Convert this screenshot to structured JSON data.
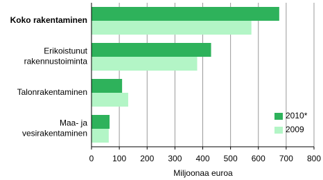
{
  "chart_data": {
    "type": "hbar",
    "categories": [
      "Koko rakentaminen",
      "Erikoistunut\nrakennustoiminta",
      "Talonrakentaminen",
      "Maa- ja\nvesirakentaminen"
    ],
    "bold_categories": [
      true,
      false,
      false,
      false
    ],
    "series": [
      {
        "name": "2010*",
        "color": "#2eb25b",
        "values": [
          675,
          430,
          110,
          65
        ]
      },
      {
        "name": "2009",
        "color": "#b3f5c6",
        "values": [
          575,
          380,
          132,
          62
        ]
      }
    ],
    "xlabel": "Miljoonaa euroa",
    "xlim": [
      0,
      800
    ],
    "xticks": [
      0,
      100,
      200,
      300,
      400,
      500,
      600,
      700,
      800
    ],
    "grid": true,
    "legend": "lower right"
  }
}
